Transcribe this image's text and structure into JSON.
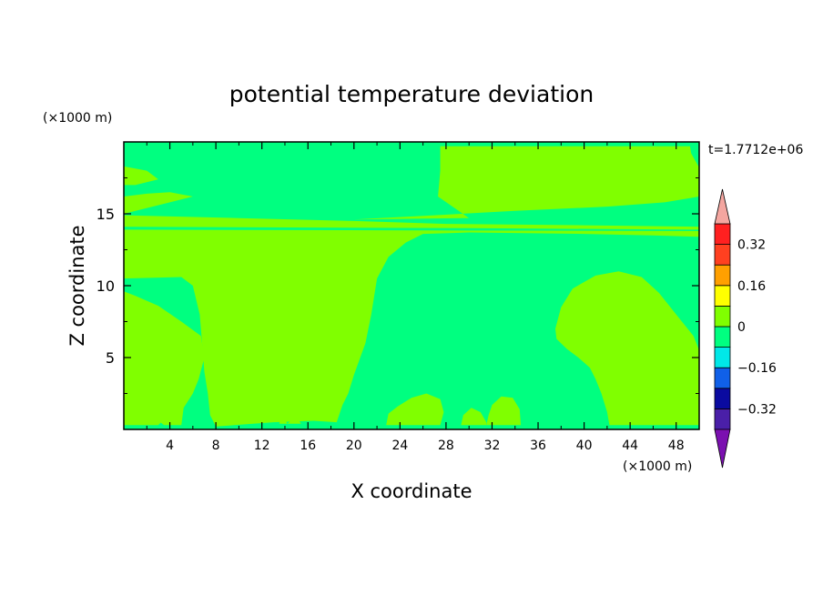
{
  "chart_data": {
    "type": "heatmap",
    "title": "potential temperature deviation",
    "xlabel": "X coordinate",
    "ylabel": "Z coordinate",
    "x_unit": "(×1000 m)",
    "y_unit": "(×1000 m)",
    "time_label": "t=1.7712e+06",
    "xlim": [
      0,
      50
    ],
    "ylim": [
      0,
      20
    ],
    "x_ticks": [
      4,
      8,
      12,
      16,
      20,
      24,
      28,
      32,
      36,
      40,
      44,
      48
    ],
    "y_ticks": [
      5,
      10,
      15
    ],
    "colorbar": {
      "levels": [
        -0.4,
        -0.32,
        -0.24,
        -0.16,
        -0.08,
        0,
        0.08,
        0.16,
        0.24,
        0.32,
        0.4
      ],
      "labels": [
        {
          "value": 0.32,
          "text": "0.32"
        },
        {
          "value": 0.16,
          "text": "0.16"
        },
        {
          "value": 0,
          "text": "0"
        },
        {
          "value": -0.16,
          "text": "−0.16"
        },
        {
          "value": -0.32,
          "text": "−0.32"
        }
      ],
      "colors": [
        "#4a1fa8",
        "#0a0aa0",
        "#1060e8",
        "#00e8e8",
        "#00ff80",
        "#80ff00",
        "#ffff00",
        "#ffa000",
        "#ff4020",
        "#ff2020"
      ],
      "under_color": "#7b10b0",
      "over_color": "#f4a6a0"
    },
    "field": {
      "background_value": -0.04,
      "regions": [
        {
          "value": 0.04,
          "points": [
            [
              0,
              18.3
            ],
            [
              2,
              18
            ],
            [
              3,
              17.4
            ],
            [
              1,
              17
            ],
            [
              0,
              17
            ]
          ]
        },
        {
          "value": 0.04,
          "points": [
            [
              0,
              16.2
            ],
            [
              2,
              16.4
            ],
            [
              4,
              16.5
            ],
            [
              6,
              16.2
            ],
            [
              4,
              15.8
            ],
            [
              1.5,
              15.3
            ],
            [
              0,
              15
            ]
          ]
        },
        {
          "value": 0.04,
          "points": [
            [
              27.5,
              19.7
            ],
            [
              49.2,
              19.7
            ],
            [
              49.3,
              19.2
            ],
            [
              50,
              18.2
            ],
            [
              50,
              16.2
            ],
            [
              47,
              15.8
            ],
            [
              42,
              15.5
            ],
            [
              34,
              15.2
            ],
            [
              27,
              14.9
            ],
            [
              20,
              14.6
            ],
            [
              30,
              14.7
            ],
            [
              27.3,
              16.2
            ],
            [
              27.5,
              18
            ]
          ]
        },
        {
          "value": 0.04,
          "points": [
            [
              0,
              14.9
            ],
            [
              10,
              14.7
            ],
            [
              20,
              14.5
            ],
            [
              24,
              14.4
            ],
            [
              28,
              14.3
            ],
            [
              40,
              14.2
            ],
            [
              50,
              14.1
            ],
            [
              50,
              13.9
            ],
            [
              30,
              14
            ],
            [
              0,
              14.1
            ]
          ]
        },
        {
          "value": 0.04,
          "points": [
            [
              0,
              13.9
            ],
            [
              50,
              13.8
            ],
            [
              50,
              13.4
            ],
            [
              46,
              13.5
            ],
            [
              40,
              13.6
            ],
            [
              30,
              13.7
            ],
            [
              26,
              13.6
            ],
            [
              24.5,
              13
            ],
            [
              23,
              12
            ],
            [
              22,
              10.5
            ],
            [
              21.5,
              8
            ],
            [
              21,
              6
            ],
            [
              20,
              3.8
            ],
            [
              19.5,
              2.5
            ],
            [
              19,
              1.7
            ],
            [
              18.5,
              0.5
            ],
            [
              16.5,
              0.6
            ],
            [
              13,
              0.5
            ],
            [
              8,
              0.2
            ],
            [
              7.5,
              1
            ],
            [
              7.3,
              2.5
            ],
            [
              7,
              4
            ],
            [
              6.8,
              6
            ],
            [
              6.6,
              8
            ],
            [
              6,
              10
            ],
            [
              5,
              10.6
            ],
            [
              0,
              10.5
            ]
          ]
        },
        {
          "value": 0.04,
          "points": [
            [
              0,
              9.6
            ],
            [
              1,
              9.3
            ],
            [
              3,
              8.6
            ],
            [
              5,
              7.5
            ],
            [
              6.7,
              6.5
            ],
            [
              7,
              5
            ],
            [
              6.5,
              3.5
            ],
            [
              6,
              2.5
            ],
            [
              5.2,
              1.5
            ],
            [
              5,
              0.3
            ],
            [
              3.5,
              0.3
            ],
            [
              3,
              0.6
            ],
            [
              2,
              1.4
            ],
            [
              1,
              2
            ],
            [
              0,
              3.7
            ]
          ]
        },
        {
          "value": 0.04,
          "points": [
            [
              0,
              3.7
            ],
            [
              1,
              2.9
            ],
            [
              2.5,
              1.7
            ],
            [
              3.5,
              0.7
            ],
            [
              3,
              0.3
            ],
            [
              0,
              0.3
            ]
          ]
        },
        {
          "value": 0.04,
          "points": [
            [
              37.5,
              7
            ],
            [
              38,
              8.5
            ],
            [
              39,
              9.8
            ],
            [
              41,
              10.7
            ],
            [
              43,
              11
            ],
            [
              45,
              10.6
            ],
            [
              46.5,
              9.5
            ],
            [
              48,
              8
            ],
            [
              49.5,
              6.5
            ],
            [
              50,
              5.5
            ],
            [
              50,
              0.3
            ],
            [
              42.2,
              0.3
            ],
            [
              42,
              1.2
            ],
            [
              41.5,
              2.5
            ],
            [
              41,
              3.5
            ],
            [
              40.5,
              4.3
            ],
            [
              39.5,
              5
            ],
            [
              38.5,
              5.6
            ],
            [
              37.6,
              6.3
            ]
          ]
        },
        {
          "value": 0.04,
          "points": [
            [
              22.8,
              0.3
            ],
            [
              23,
              1.1
            ],
            [
              23.8,
              1.6
            ],
            [
              25,
              2.2
            ],
            [
              26.3,
              2.5
            ],
            [
              27.5,
              2.1
            ],
            [
              27.8,
              1.2
            ],
            [
              27.5,
              0.3
            ]
          ]
        },
        {
          "value": 0.04,
          "points": [
            [
              29.3,
              0.3
            ],
            [
              29.5,
              1
            ],
            [
              30.2,
              1.5
            ],
            [
              31,
              1.2
            ],
            [
              31.5,
              0.5
            ],
            [
              31.5,
              0.3
            ]
          ]
        },
        {
          "value": 0.04,
          "points": [
            [
              31.5,
              0.3
            ],
            [
              31.7,
              1
            ],
            [
              32,
              1.7
            ],
            [
              32.8,
              2.3
            ],
            [
              33.8,
              2.2
            ],
            [
              34.4,
              1.4
            ],
            [
              34.5,
              0.3
            ]
          ]
        },
        {
          "value": 0.04,
          "points": [
            [
              13.5,
              0.4
            ],
            [
              13.8,
              1
            ],
            [
              14.2,
              0.4
            ],
            [
              15,
              0.9
            ],
            [
              15.4,
              0.4
            ]
          ]
        }
      ]
    }
  }
}
